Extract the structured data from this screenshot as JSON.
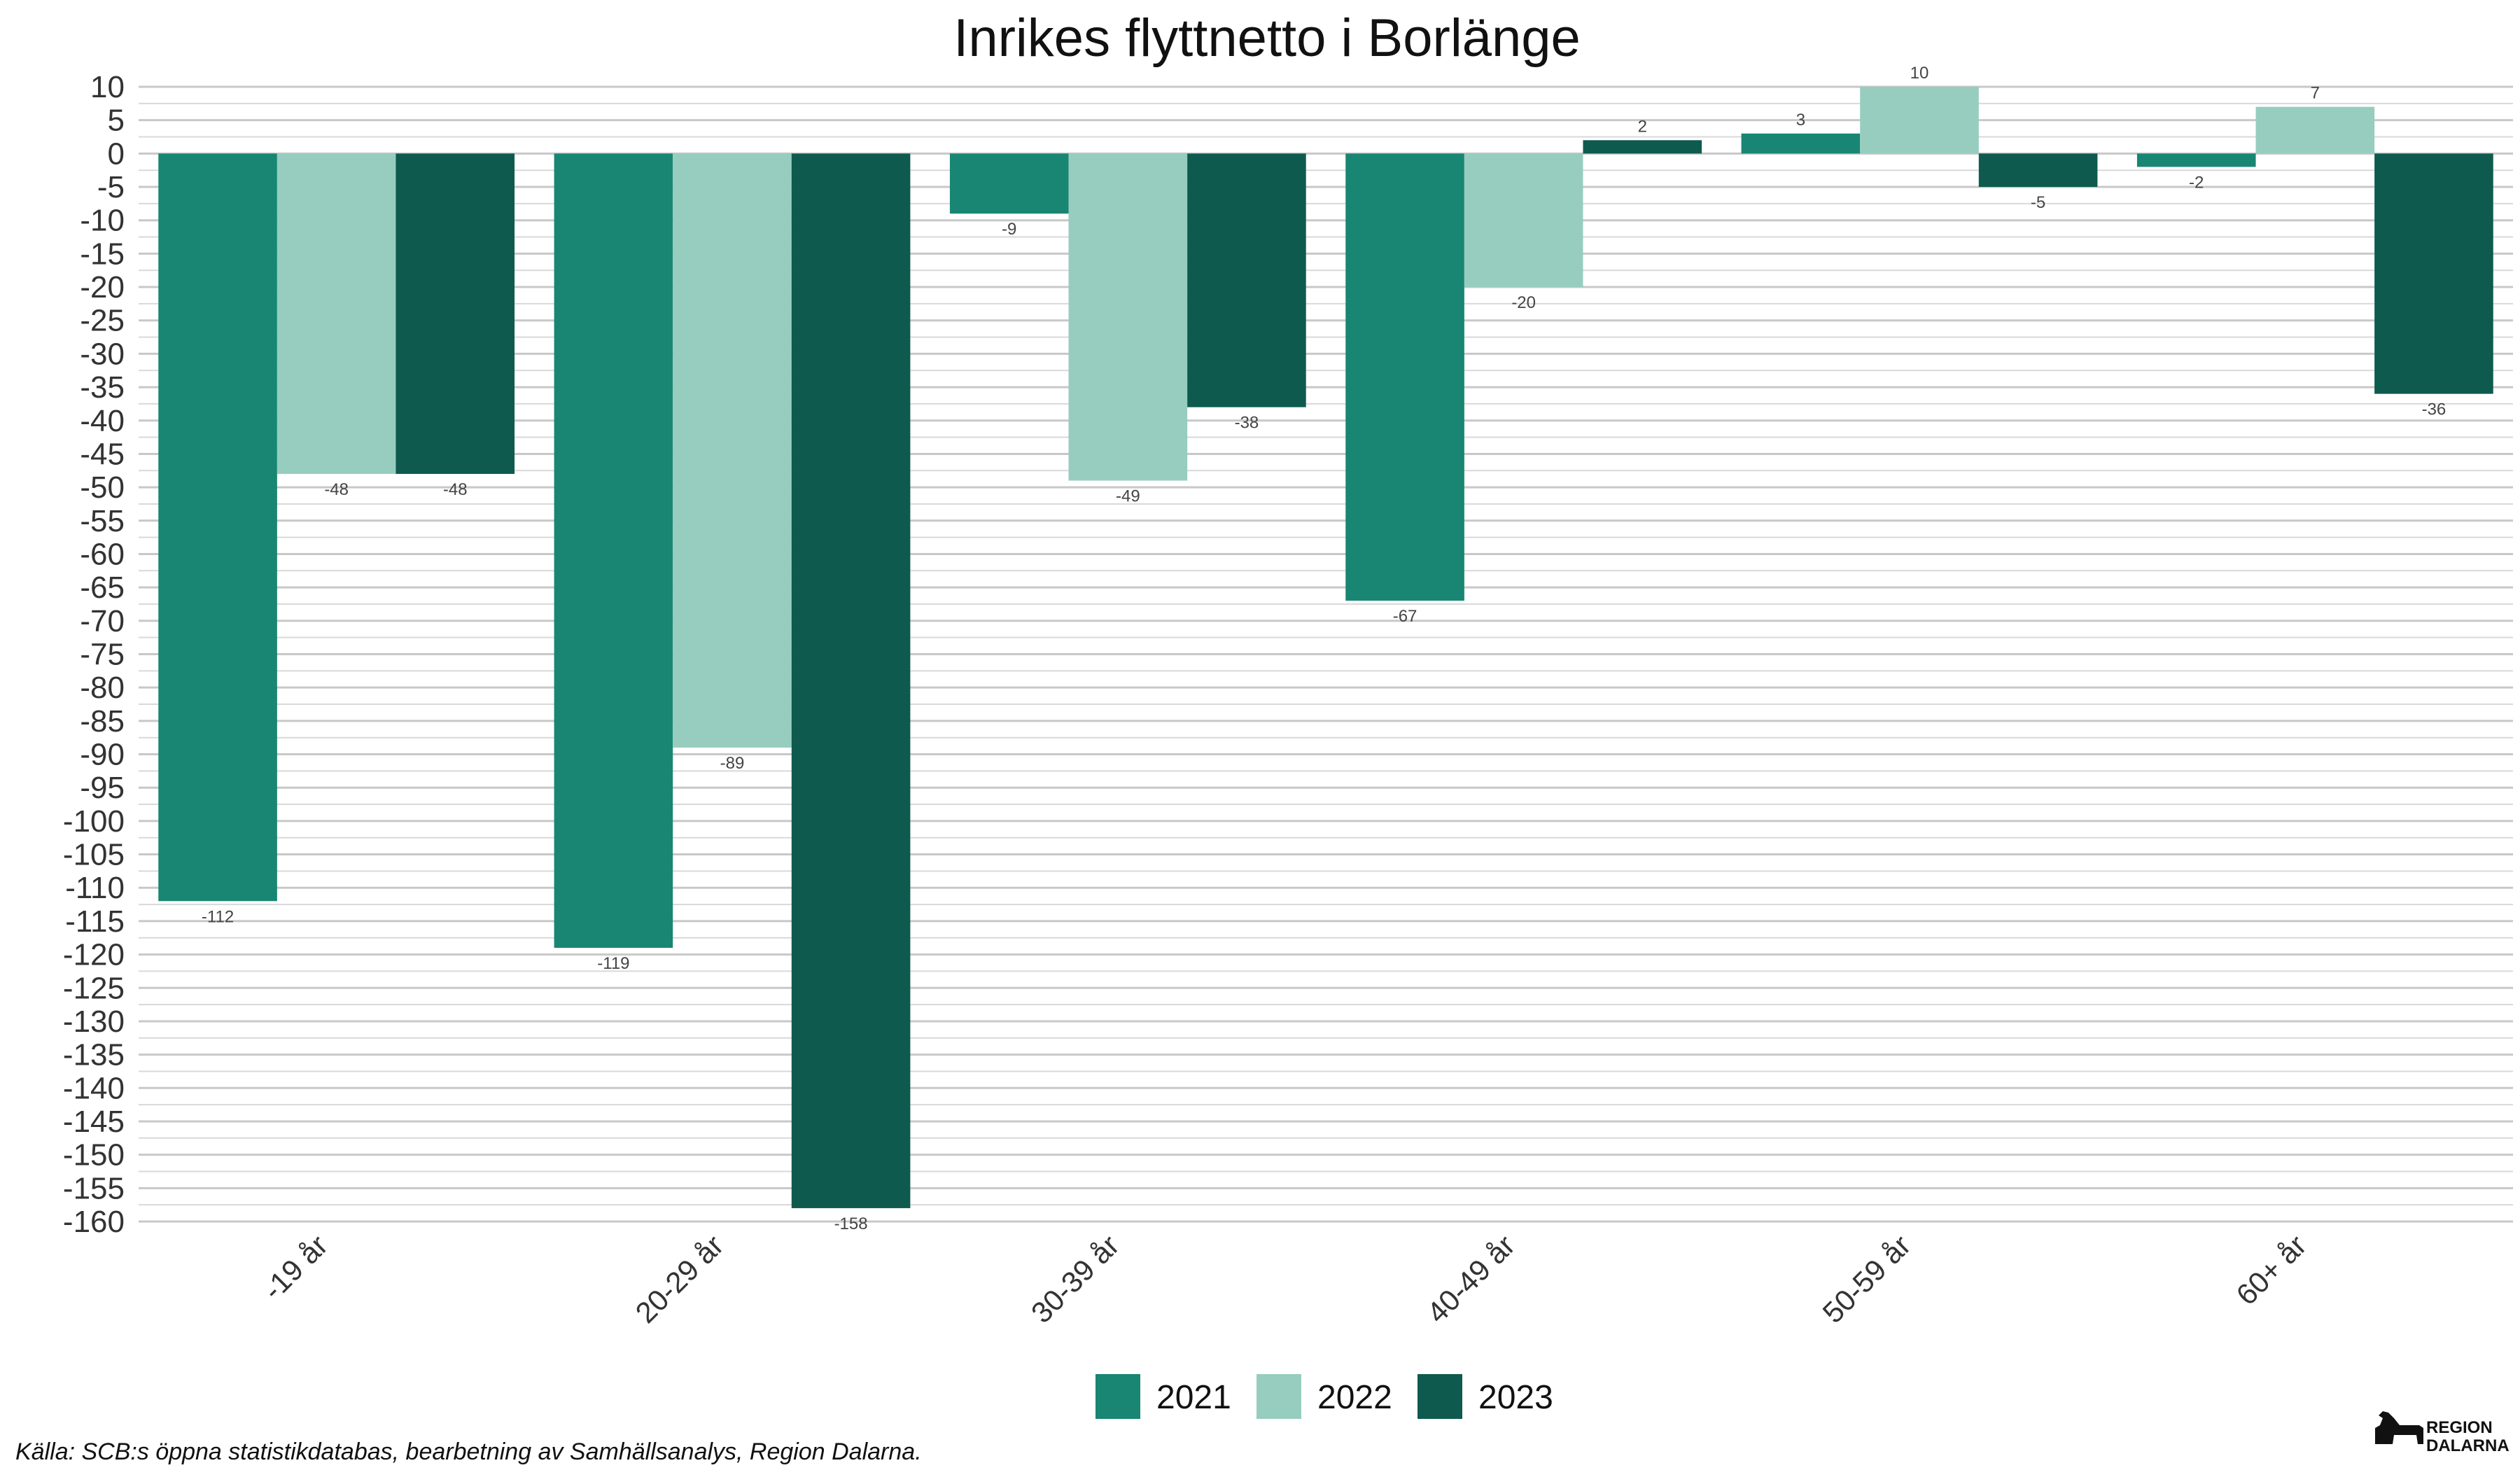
{
  "chart_data": {
    "type": "bar",
    "title": "Inrikes flyttnetto i Borlänge",
    "xlabel": "",
    "ylabel": "",
    "categories": [
      "-19 år",
      "20-29 år",
      "30-39 år",
      "40-49 år",
      "50-59 år",
      "60+ år"
    ],
    "series": [
      {
        "name": "2021",
        "color": "#188672",
        "values": [
          -112,
          -119,
          -9,
          -67,
          3,
          -2
        ]
      },
      {
        "name": "2022",
        "color": "#96cdbf",
        "values": [
          -48,
          -89,
          -49,
          -20,
          10,
          7
        ]
      },
      {
        "name": "2023",
        "color": "#0e5a4e",
        "values": [
          -48,
          -158,
          -38,
          2,
          -5,
          -36
        ]
      }
    ],
    "ylim": [
      -160,
      10
    ],
    "ytick_step": 5,
    "grid": true,
    "legend_position": "bottom",
    "caption": "Källa: SCB:s öppna statistikdatabas, bearbetning av Samhällsanalys, Region Dalarna."
  },
  "logo": {
    "text_line1": "REGION",
    "text_line2": "DALARNA"
  }
}
